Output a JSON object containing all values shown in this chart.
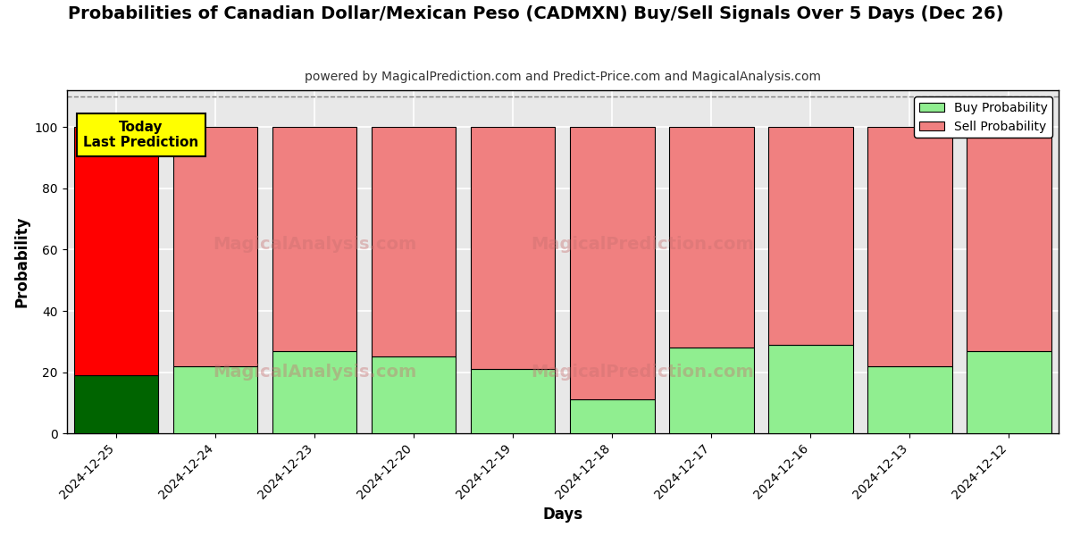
{
  "title": "Probabilities of Canadian Dollar/Mexican Peso (CADMXN) Buy/Sell Signals Over 5 Days (Dec 26)",
  "subtitle": "powered by MagicalPrediction.com and Predict-Price.com and MagicalAnalysis.com",
  "xlabel": "Days",
  "ylabel": "Probability",
  "categories": [
    "2024-12-25",
    "2024-12-24",
    "2024-12-23",
    "2024-12-20",
    "2024-12-19",
    "2024-12-18",
    "2024-12-17",
    "2024-12-16",
    "2024-12-13",
    "2024-12-12"
  ],
  "buy_values": [
    19,
    22,
    27,
    25,
    21,
    11,
    28,
    29,
    22,
    27
  ],
  "sell_values": [
    81,
    78,
    73,
    75,
    79,
    89,
    72,
    71,
    78,
    73
  ],
  "today_bar_buy_color": "#006400",
  "today_bar_sell_color": "#ff0000",
  "other_bar_buy_color": "#90ee90",
  "other_bar_sell_color": "#f08080",
  "bar_edge_color": "#000000",
  "today_annotation_text": "Today\nLast Prediction",
  "today_annotation_bg": "#ffff00",
  "today_annotation_border": "#000000",
  "legend_buy_color": "#90ee90",
  "legend_sell_color": "#f08080",
  "ylim": [
    0,
    112
  ],
  "dashed_line_y": 110,
  "plot_bg_color": "#e8e8e8",
  "background_color": "#ffffff",
  "grid_color": "#ffffff",
  "title_fontsize": 14,
  "subtitle_fontsize": 10,
  "axis_label_fontsize": 12,
  "tick_fontsize": 10
}
